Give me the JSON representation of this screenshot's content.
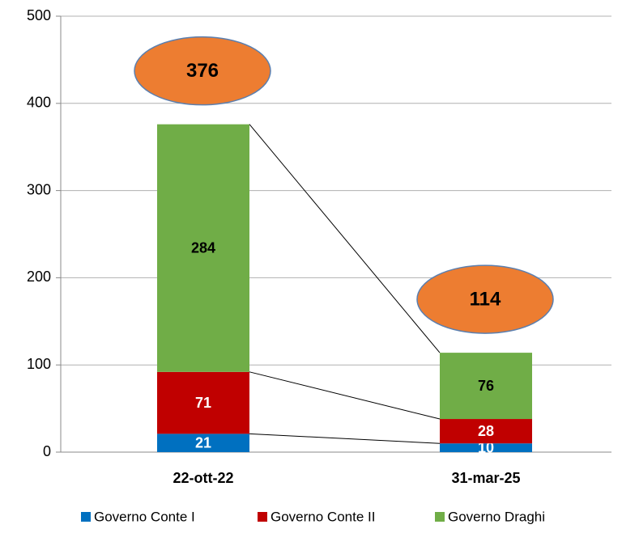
{
  "chart_data": {
    "type": "stacked_bar",
    "categories": [
      "22-ott-22",
      "31-mar-25"
    ],
    "series": [
      {
        "name": "Governo Conte I",
        "color": "#0070c0",
        "label_color": "#ffffff",
        "values": [
          21,
          10
        ]
      },
      {
        "name": "Governo Conte II",
        "color": "#c00000",
        "label_color": "#ffffff",
        "values": [
          71,
          28
        ]
      },
      {
        "name": "Governo Draghi",
        "color": "#70ad47",
        "label_color": "#000000",
        "values": [
          284,
          76
        ]
      }
    ],
    "totals": [
      376,
      114
    ],
    "totals_color": "#ed7d31",
    "ylim": [
      0,
      500
    ],
    "yticks": [
      0,
      100,
      200,
      300,
      400,
      500
    ],
    "grid": true,
    "legend": "bottom"
  }
}
